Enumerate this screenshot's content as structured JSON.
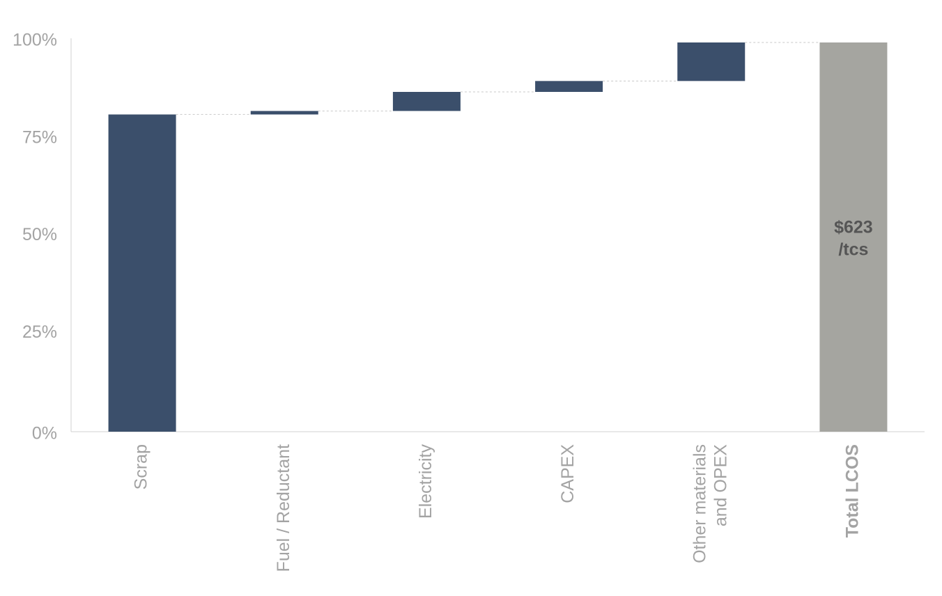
{
  "chart_data": {
    "type": "waterfall",
    "categories": [
      "Scrap",
      "Fuel / Reductant",
      "Electricity",
      "CAPEX",
      [
        "Other materials",
        "and OPEX"
      ],
      "Total LCOS"
    ],
    "values": [
      81.5,
      0.9,
      4.9,
      2.8,
      9.9,
      100
    ],
    "is_total": [
      false,
      false,
      false,
      false,
      false,
      true
    ],
    "color": "#3b4f6b",
    "total_color": "#a5a5a0",
    "annotation": [
      "$623",
      "/tcs"
    ],
    "ylim": [
      0,
      100
    ],
    "yticks": [
      {
        "value": 0,
        "label": "0%"
      },
      {
        "value": 25,
        "label": "25%"
      },
      {
        "value": 50,
        "label": "50%"
      },
      {
        "value": 75,
        "label": "75%"
      },
      {
        "value": 100,
        "label": "100%"
      }
    ],
    "connectors": true
  }
}
